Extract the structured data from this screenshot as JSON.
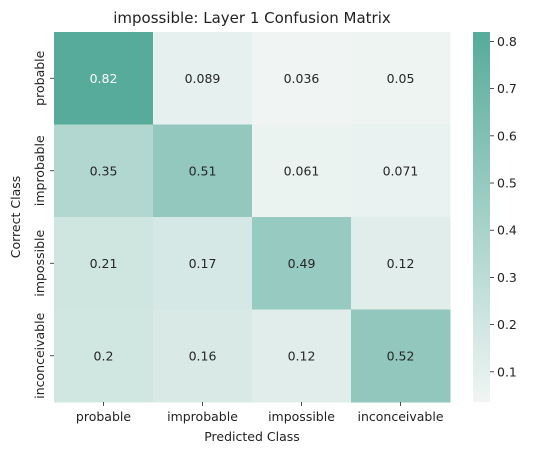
{
  "chart_data": {
    "type": "heatmap",
    "title": "impossible: Layer 1 Confusion Matrix",
    "xlabel": "Predicted Class",
    "ylabel": "Correct Class",
    "x_categories": [
      "probable",
      "improbable",
      "impossible",
      "inconceivable"
    ],
    "y_categories": [
      "probable",
      "improbable",
      "impossible",
      "inconceivable"
    ],
    "values": [
      [
        0.82,
        0.089,
        0.036,
        0.05
      ],
      [
        0.35,
        0.51,
        0.061,
        0.071
      ],
      [
        0.21,
        0.17,
        0.49,
        0.12
      ],
      [
        0.2,
        0.16,
        0.12,
        0.52
      ]
    ],
    "labels": [
      [
        "0.82",
        "0.089",
        "0.036",
        "0.05"
      ],
      [
        "0.35",
        "0.51",
        "0.061",
        "0.071"
      ],
      [
        "0.21",
        "0.17",
        "0.49",
        "0.12"
      ],
      [
        "0.2",
        "0.16",
        "0.12",
        "0.52"
      ]
    ],
    "colorbar": {
      "range": [
        0.036,
        0.82
      ],
      "ticks": [
        0.1,
        0.2,
        0.3,
        0.4,
        0.5,
        0.6,
        0.7,
        0.8
      ],
      "tick_labels": [
        "0.1",
        "0.2",
        "0.3",
        "0.4",
        "0.5",
        "0.6",
        "0.7",
        "0.8"
      ],
      "color_low": "#f0f5f4",
      "color_high": "#56ab9a"
    }
  }
}
